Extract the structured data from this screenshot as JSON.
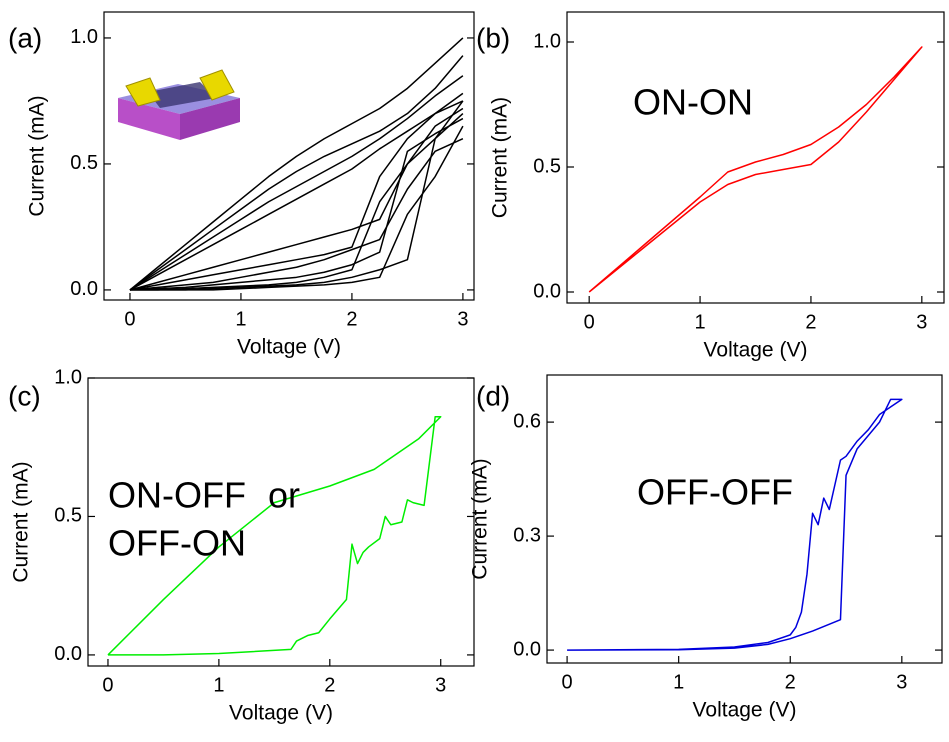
{
  "chart_data": [
    {
      "type": "line",
      "panel_label": "(a)",
      "xlabel": "Voltage (V)",
      "ylabel": "Current (mA)",
      "xlim": [
        -0.234,
        3.1
      ],
      "ylim": [
        -0.04,
        1.103
      ],
      "xticks": [
        0,
        1,
        2,
        3
      ],
      "yticks": [
        {
          "value": 0,
          "label": "0.0"
        },
        {
          "value": 0.5,
          "label": "0.5"
        },
        {
          "value": 1,
          "label": "1.0"
        }
      ],
      "x": [
        0,
        0.25,
        0.5,
        0.75,
        1,
        1.25,
        1.5,
        1.75,
        2,
        2.25,
        2.5,
        2.75,
        3
      ],
      "series": [
        {
          "color": "#000000",
          "values": [
            0,
            0.09,
            0.18,
            0.27,
            0.36,
            0.45,
            0.53,
            0.6,
            0.66,
            0.72,
            0.8,
            0.9,
            1.0
          ]
        },
        {
          "color": "#000000",
          "values": [
            0,
            0.08,
            0.16,
            0.24,
            0.32,
            0.4,
            0.47,
            0.53,
            0.58,
            0.63,
            0.7,
            0.8,
            0.93
          ]
        },
        {
          "color": "#000000",
          "values": [
            0,
            0.07,
            0.14,
            0.21,
            0.28,
            0.35,
            0.41,
            0.47,
            0.53,
            0.6,
            0.68,
            0.77,
            0.85
          ]
        },
        {
          "color": "#000000",
          "values": [
            0,
            0.06,
            0.12,
            0.18,
            0.24,
            0.3,
            0.36,
            0.42,
            0.48,
            0.56,
            0.63,
            0.7,
            0.78
          ]
        },
        {
          "color": "#000000",
          "values": [
            0,
            0.03,
            0.06,
            0.09,
            0.12,
            0.15,
            0.18,
            0.21,
            0.24,
            0.28,
            0.5,
            0.65,
            0.72
          ]
        },
        {
          "color": "#000000",
          "values": [
            0,
            0.02,
            0.04,
            0.06,
            0.08,
            0.1,
            0.12,
            0.14,
            0.17,
            0.45,
            0.6,
            0.7,
            0.75
          ]
        },
        {
          "color": "#000000",
          "values": [
            0,
            0.005,
            0.01,
            0.02,
            0.03,
            0.04,
            0.05,
            0.07,
            0.1,
            0.15,
            0.55,
            0.62,
            0.68
          ]
        },
        {
          "color": "#000000",
          "values": [
            0,
            0,
            0.005,
            0.01,
            0.015,
            0.02,
            0.03,
            0.05,
            0.08,
            0.35,
            0.5,
            0.6,
            0.7
          ]
        },
        {
          "color": "#000000",
          "values": [
            0,
            0,
            0,
            0.005,
            0.01,
            0.015,
            0.02,
            0.03,
            0.05,
            0.08,
            0.12,
            0.6,
            0.75
          ]
        },
        {
          "color": "#000000",
          "values": [
            0,
            0,
            0,
            0,
            0.005,
            0.01,
            0.015,
            0.02,
            0.03,
            0.05,
            0.3,
            0.45,
            0.65
          ]
        },
        {
          "color": "#000000",
          "values": [
            0,
            0.01,
            0.02,
            0.03,
            0.05,
            0.07,
            0.09,
            0.12,
            0.16,
            0.2,
            0.4,
            0.55,
            0.6
          ]
        }
      ],
      "annotations": []
    },
    {
      "type": "line",
      "panel_label": "(b)",
      "xlabel": "Voltage (V)",
      "ylabel": "Current (mA)",
      "xlim": [
        -0.2,
        3.2
      ],
      "ylim": [
        -0.044,
        1.12
      ],
      "xticks": [
        0,
        1,
        2,
        3
      ],
      "yticks": [
        {
          "value": 0,
          "label": "0.0"
        },
        {
          "value": 0.5,
          "label": "0.5"
        },
        {
          "value": 1,
          "label": "1.0"
        }
      ],
      "x": [
        0,
        0.5,
        1,
        1.25,
        1.5,
        1.75,
        2,
        2.25,
        2.5,
        2.75,
        3,
        2.75,
        2.5,
        2.25,
        2,
        1.75,
        1.5,
        1.25,
        1,
        0.5,
        0
      ],
      "series": [
        {
          "color": "#ff0000",
          "values": [
            0,
            0.18,
            0.36,
            0.43,
            0.47,
            0.49,
            0.51,
            0.6,
            0.72,
            0.85,
            0.98,
            0.86,
            0.75,
            0.66,
            0.59,
            0.55,
            0.52,
            0.48,
            0.38,
            0.19,
            0
          ]
        }
      ],
      "annotations": [
        {
          "text": "ON-ON",
          "color": "#ff0000"
        }
      ]
    },
    {
      "type": "line",
      "panel_label": "(c)",
      "xlabel": "Voltage (V)",
      "ylabel": "Current (mA)",
      "xlim": [
        -0.18,
        3.3
      ],
      "ylim": [
        -0.04,
        1.0
      ],
      "xticks": [
        0,
        1,
        2,
        3
      ],
      "yticks": [
        {
          "value": 0,
          "label": "0.0"
        },
        {
          "value": 0.5,
          "label": "0.5"
        },
        {
          "value": 1,
          "label": "1.0"
        }
      ],
      "x": [
        0,
        0.5,
        1,
        1.5,
        2,
        2.4,
        2.8,
        3,
        2.95,
        2.85,
        2.75,
        2.7,
        2.65,
        2.55,
        2.5,
        2.45,
        2.35,
        2.3,
        2.25,
        2.2,
        2.15,
        2.0,
        1.9,
        1.8,
        1.7,
        1.65,
        1.0,
        0.5,
        0
      ],
      "series": [
        {
          "color": "#00ee00",
          "values": [
            0,
            0.2,
            0.39,
            0.55,
            0.61,
            0.67,
            0.78,
            0.86,
            0.86,
            0.54,
            0.55,
            0.56,
            0.48,
            0.47,
            0.5,
            0.42,
            0.39,
            0.37,
            0.33,
            0.4,
            0.2,
            0.13,
            0.08,
            0.07,
            0.05,
            0.02,
            0.005,
            0,
            0
          ]
        }
      ],
      "annotations": [
        {
          "text": "ON-OFF",
          "color": "#00ee00"
        },
        {
          "text": "or",
          "color": "#000000"
        },
        {
          "text": "OFF-ON",
          "color": "#00ee00"
        }
      ]
    },
    {
      "type": "line",
      "panel_label": "(d)",
      "xlabel": "Voltage (V)",
      "ylabel": "Current (mA)",
      "xlim": [
        -0.18,
        3.36
      ],
      "ylim": [
        -0.034,
        0.724
      ],
      "xticks": [
        0,
        1,
        2,
        3
      ],
      "yticks": [
        {
          "value": 0,
          "label": "0.0"
        },
        0.3,
        0.6
      ],
      "x": [
        0,
        1,
        1.5,
        1.8,
        2.0,
        2.05,
        2.1,
        2.15,
        2.2,
        2.25,
        2.3,
        2.35,
        2.45,
        2.5,
        2.6,
        2.7,
        2.8,
        2.9,
        3,
        2.9,
        2.8,
        2.6,
        2.5,
        2.45,
        2.2,
        2.0,
        1.8,
        1.5,
        1,
        0
      ],
      "series": [
        {
          "color": "#0000dd",
          "values": [
            0,
            0.002,
            0.008,
            0.02,
            0.04,
            0.06,
            0.1,
            0.2,
            0.36,
            0.33,
            0.4,
            0.37,
            0.5,
            0.51,
            0.55,
            0.58,
            0.62,
            0.64,
            0.66,
            0.66,
            0.6,
            0.53,
            0.46,
            0.08,
            0.05,
            0.03,
            0.015,
            0.005,
            0.001,
            0
          ]
        }
      ],
      "annotations": [
        {
          "text": "OFF-OFF",
          "color": "#0000dd"
        }
      ]
    }
  ]
}
